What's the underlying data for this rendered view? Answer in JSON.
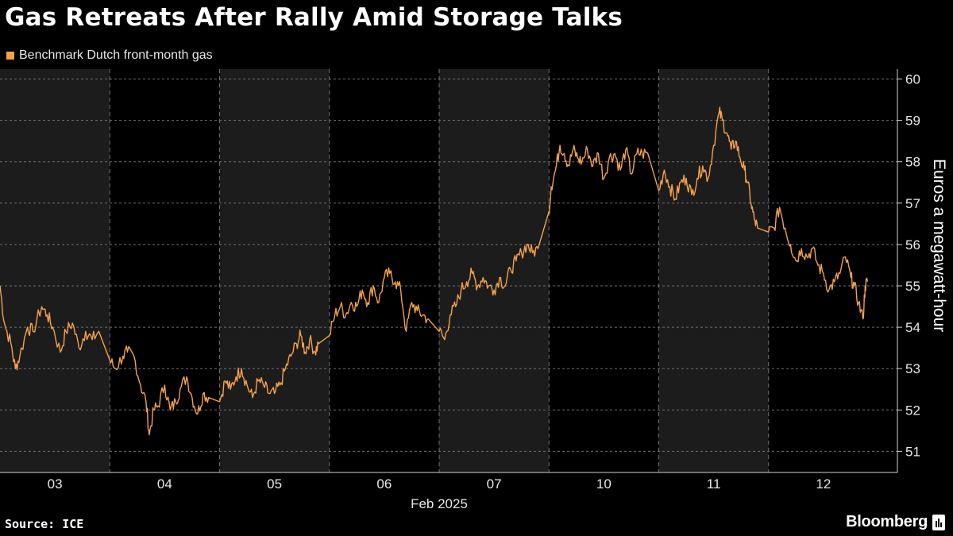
{
  "title": "Gas Retreats After Rally Amid Storage Talks",
  "legend": {
    "label": "Benchmark Dutch front-month gas",
    "color": "#f4a24a"
  },
  "source": "Source: ICE",
  "brand": "Bloomberg",
  "colors": {
    "background": "#000000",
    "shade": "#1c1c1c",
    "grid": "#6e6e6e",
    "line": "#f4a24a"
  },
  "chart_data": {
    "type": "line",
    "title": "Gas Retreats After Rally Amid Storage Talks",
    "xlabel": "Feb 2025",
    "ylabel": "Euros a megawatt-hour",
    "ylim": [
      50.5,
      60.2
    ],
    "yticks": [
      51,
      52,
      53,
      54,
      55,
      56,
      57,
      58,
      59,
      60
    ],
    "grid": true,
    "legend_position": "top-left",
    "categories": [
      "03",
      "04",
      "05",
      "06",
      "07",
      "10",
      "11",
      "12"
    ],
    "shaded_sessions": [
      "03",
      "05",
      "07",
      "11"
    ],
    "series": [
      {
        "name": "Benchmark Dutch front-month gas",
        "sessions": [
          {
            "day": "03",
            "x": [
              0,
              0.04,
              0.1,
              0.14,
              0.18,
              0.25,
              0.3,
              0.38,
              0.43,
              0.48,
              0.55,
              0.6,
              0.66,
              0.72,
              0.78,
              0.84,
              0.9
            ],
            "y": [
              55.0,
              54.1,
              53.6,
              53.0,
              53.3,
              54.0,
              53.9,
              54.5,
              54.3,
              54.0,
              53.4,
              53.9,
              54.1,
              53.5,
              53.9,
              53.7,
              53.9
            ]
          },
          {
            "day": "04",
            "x": [
              0,
              0.05,
              0.12,
              0.16,
              0.22,
              0.28,
              0.33,
              0.36,
              0.4,
              0.44,
              0.5,
              0.55,
              0.6,
              0.64,
              0.7,
              0.75,
              0.8,
              0.85,
              0.9
            ],
            "y": [
              53.2,
              53.0,
              53.3,
              53.4,
              53.3,
              52.6,
              52.2,
              51.4,
              52.0,
              52.1,
              52.6,
              52.0,
              52.2,
              52.5,
              52.8,
              52.3,
              51.9,
              52.4,
              52.3
            ]
          },
          {
            "day": "05",
            "x": [
              0,
              0.05,
              0.1,
              0.15,
              0.2,
              0.25,
              0.3,
              0.35,
              0.4,
              0.45,
              0.5,
              0.55,
              0.6,
              0.65,
              0.7,
              0.74,
              0.78,
              0.82,
              0.87,
              0.9
            ],
            "y": [
              52.2,
              52.7,
              52.5,
              52.8,
              53.0,
              52.6,
              52.3,
              52.7,
              52.6,
              52.4,
              52.4,
              52.6,
              53.0,
              53.3,
              53.6,
              53.8,
              53.4,
              53.7,
              53.4,
              53.6
            ]
          },
          {
            "day": "06",
            "x": [
              0,
              0.05,
              0.1,
              0.15,
              0.2,
              0.25,
              0.3,
              0.35,
              0.4,
              0.45,
              0.5,
              0.55,
              0.6,
              0.65,
              0.7,
              0.75,
              0.8,
              0.85,
              0.9
            ],
            "y": [
              53.8,
              54.3,
              54.5,
              54.3,
              54.6,
              54.5,
              54.9,
              54.6,
              55.0,
              54.6,
              55.2,
              55.3,
              55.1,
              54.9,
              53.9,
              54.6,
              54.4,
              54.3,
              54.2
            ]
          },
          {
            "day": "07",
            "x": [
              0,
              0.05,
              0.1,
              0.15,
              0.2,
              0.25,
              0.3,
              0.35,
              0.4,
              0.45,
              0.5,
              0.55,
              0.6,
              0.65,
              0.7,
              0.75,
              0.8,
              0.85,
              0.9
            ],
            "y": [
              53.9,
              53.7,
              54.3,
              54.5,
              54.9,
              55.1,
              55.3,
              55.0,
              55.2,
              55.0,
              54.9,
              55.2,
              55.0,
              55.4,
              55.6,
              55.8,
              56.0,
              55.8,
              55.9
            ]
          },
          {
            "day": "10",
            "x": [
              0,
              0.02,
              0.06,
              0.1,
              0.14,
              0.18,
              0.22,
              0.26,
              0.3,
              0.35,
              0.4,
              0.45,
              0.5,
              0.55,
              0.6,
              0.65,
              0.7,
              0.75,
              0.8,
              0.85,
              0.9
            ],
            "y": [
              56.8,
              57.4,
              57.8,
              58.4,
              58.2,
              57.9,
              58.3,
              58.1,
              58.0,
              58.3,
              57.9,
              58.2,
              57.6,
              58.1,
              58.2,
              57.8,
              58.3,
              57.7,
              58.2,
              58.2,
              58.2
            ]
          },
          {
            "day": "11",
            "x": [
              0,
              0.05,
              0.1,
              0.15,
              0.2,
              0.25,
              0.3,
              0.35,
              0.4,
              0.45,
              0.5,
              0.55,
              0.58,
              0.62,
              0.66,
              0.7,
              0.74,
              0.78,
              0.81,
              0.84,
              0.87,
              0.9
            ],
            "y": [
              57.3,
              57.8,
              57.4,
              57.1,
              57.5,
              57.6,
              57.2,
              57.6,
              57.9,
              57.6,
              58.4,
              59.2,
              59.0,
              58.7,
              58.3,
              58.5,
              58.1,
              57.8,
              57.5,
              57.0,
              56.6,
              56.4
            ]
          },
          {
            "day": "12",
            "x": [
              0,
              0.05,
              0.1,
              0.15,
              0.2,
              0.25,
              0.3,
              0.35,
              0.4,
              0.45,
              0.5,
              0.55,
              0.6,
              0.65,
              0.7,
              0.75,
              0.78,
              0.82,
              0.86,
              0.88,
              0.9
            ],
            "y": [
              56.3,
              56.4,
              56.9,
              56.4,
              56.0,
              55.6,
              55.9,
              55.7,
              55.9,
              55.5,
              55.3,
              54.9,
              55.1,
              55.3,
              55.7,
              55.2,
              55.0,
              54.6,
              54.2,
              55.0,
              55.1
            ]
          }
        ]
      }
    ]
  }
}
